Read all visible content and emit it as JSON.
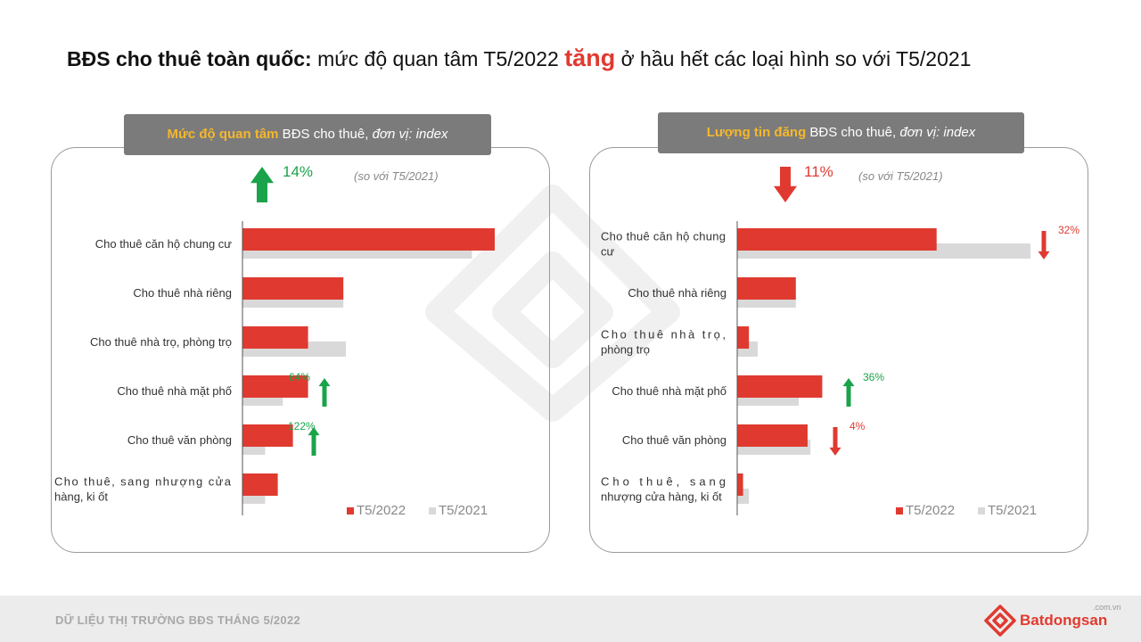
{
  "title": {
    "bold": "BĐS cho thuê toàn quốc:",
    "part1": " mức độ quan tâm T5/2022 ",
    "highlight": "tăng",
    "part2": " ở hầu hết các loại hình so với T5/2021"
  },
  "footer": {
    "text": "DỮ LIỆU THỊ TRƯỜNG BĐS THÁNG 5/2022",
    "logo": "Batdongsan",
    "logo_suffix": ".com.vn"
  },
  "colors": {
    "current": "#e03a30",
    "previous": "#d9d9d9",
    "up": "#1aa34a",
    "down": "#e03a30"
  },
  "chart_data": [
    {
      "type": "bar",
      "panel_title": {
        "accent": "Mức độ quan tâm",
        "rest": " BĐS cho thuê, ",
        "unit": "đơn vị: index"
      },
      "overall_change": {
        "value": "14%",
        "direction": "up"
      },
      "comparison_note": "(so với T5/2021)",
      "categories": [
        [
          "Cho thuê căn hộ chung cư"
        ],
        [
          "Cho thuê nhà riêng"
        ],
        [
          "Cho thuê nhà trọ, phòng trọ"
        ],
        [
          "Cho thuê nhà mặt phố"
        ],
        [
          "Cho thuê văn phòng"
        ],
        [
          "Cho thuê, sang nhượng cửa",
          "hàng, ki ốt"
        ]
      ],
      "series": [
        {
          "name": "T5/2022",
          "values": [
            100,
            40,
            26,
            26,
            20,
            14
          ]
        },
        {
          "name": "T5/2021",
          "values": [
            91,
            40,
            41,
            16,
            9,
            9
          ]
        }
      ],
      "annotations": [
        {
          "index": 3,
          "value": "64%",
          "direction": "up"
        },
        {
          "index": 4,
          "value": "122%",
          "direction": "up"
        }
      ],
      "xlim": [
        0,
        100
      ]
    },
    {
      "type": "bar",
      "panel_title": {
        "accent": "Lượng tin đăng",
        "rest": " BĐS cho thuê, ",
        "unit": "đơn vị: index"
      },
      "overall_change": {
        "value": "11%",
        "direction": "down"
      },
      "comparison_note": "(so với T5/2021)",
      "categories": [
        [
          "Cho thuê căn hộ chung",
          "cư"
        ],
        [
          "Cho thuê nhà riêng"
        ],
        [
          "Cho thuê nhà trọ,",
          "phòng trọ"
        ],
        [
          "Cho thuê nhà mặt phố"
        ],
        [
          "Cho thuê văn phòng"
        ],
        [
          "Cho thuê, sang",
          "nhượng cửa hàng, ki ốt"
        ]
      ],
      "series": [
        {
          "name": "T5/2022",
          "values": [
            68,
            20,
            4,
            29,
            24,
            2
          ]
        },
        {
          "name": "T5/2021",
          "values": [
            100,
            20,
            7,
            21,
            25,
            4
          ]
        }
      ],
      "annotations": [
        {
          "index": 0,
          "value": "32%",
          "direction": "down"
        },
        {
          "index": 3,
          "value": "36%",
          "direction": "up"
        },
        {
          "index": 4,
          "value": "4%",
          "direction": "down"
        }
      ],
      "xlim": [
        0,
        100
      ]
    }
  ]
}
